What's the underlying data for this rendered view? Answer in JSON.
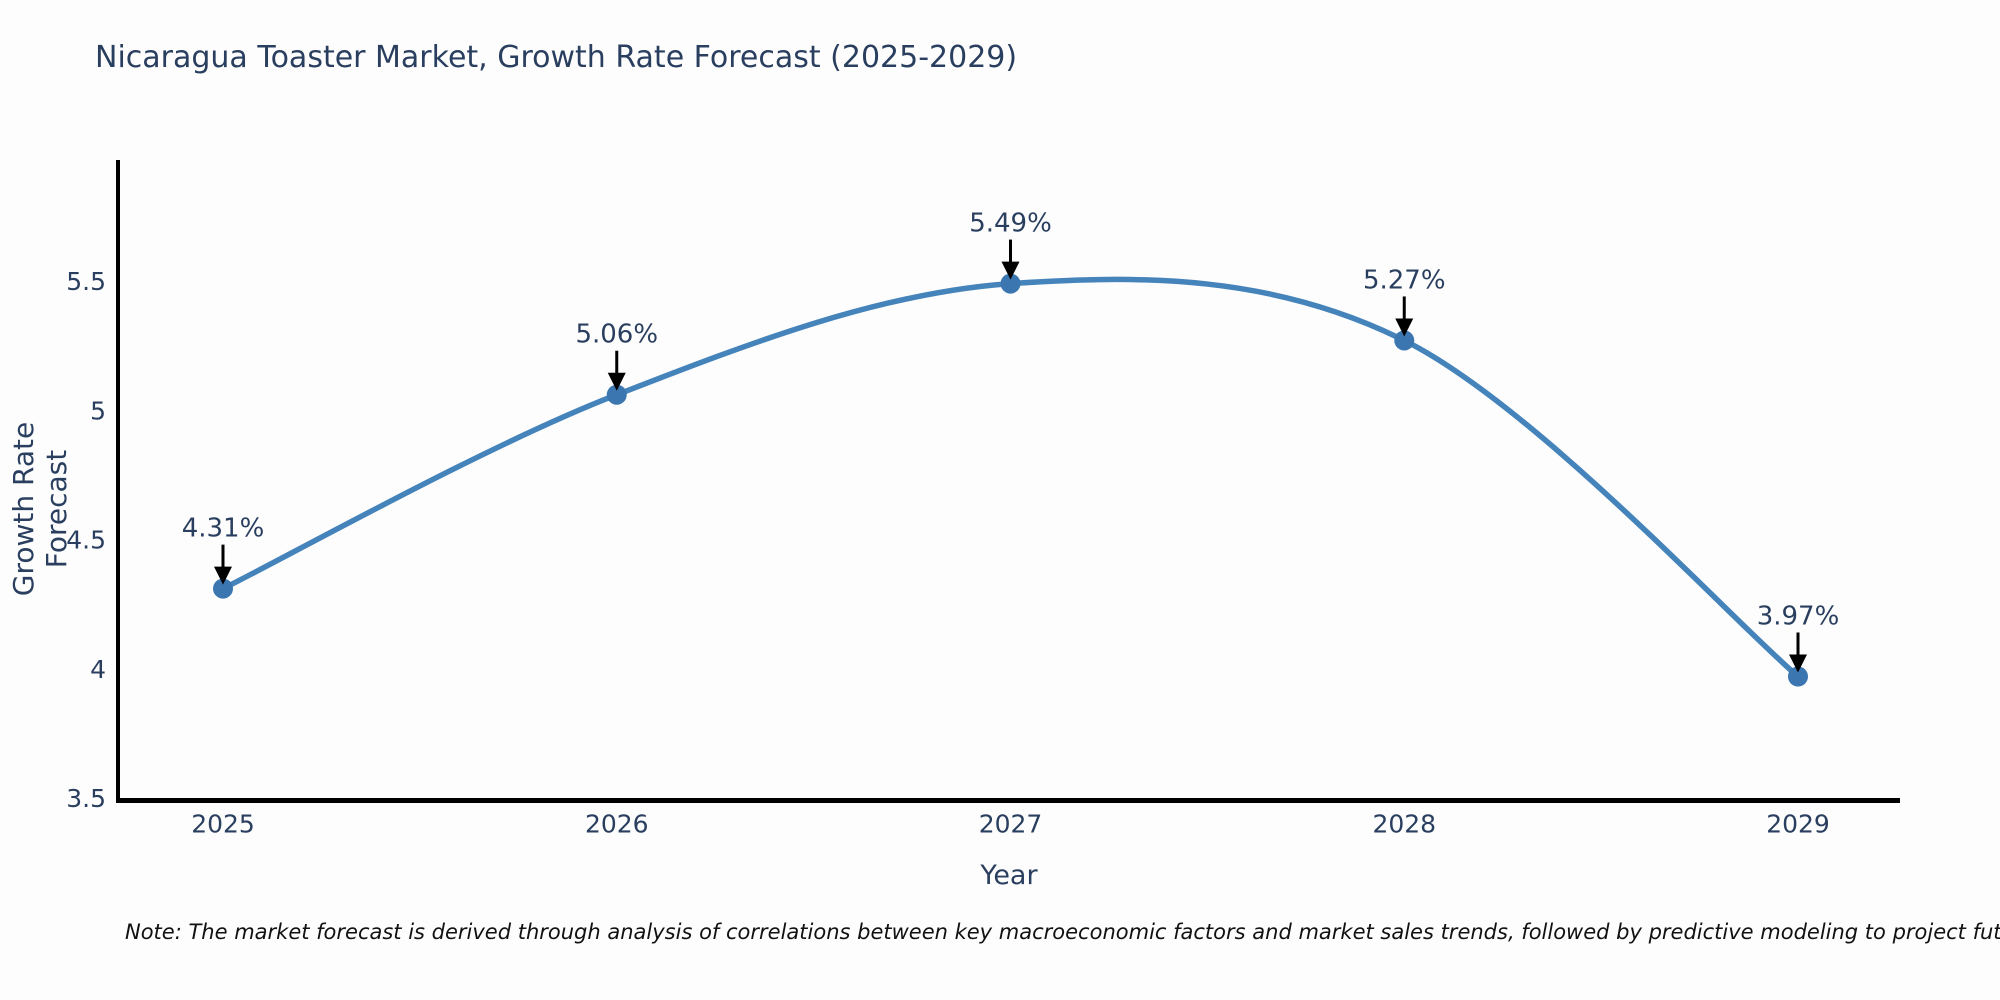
{
  "note": "Note: The market forecast is derived through analysis of correlations between key macroeconomic factors and market sales trends, followed by predictive modeling to project future sales",
  "chart_data": {
    "type": "line",
    "title": "Nicaragua Toaster Market, Growth Rate Forecast (2025-2029)",
    "x": [
      2025,
      2026,
      2027,
      2028,
      2029
    ],
    "y": [
      4.31,
      5.06,
      5.49,
      5.27,
      3.97
    ],
    "point_labels": [
      "4.31%",
      "5.06%",
      "5.49%",
      "5.27%",
      "3.97%"
    ],
    "xlabel": "Year",
    "ylabel": "Growth Rate Forecast",
    "yticks": [
      3.5,
      4,
      4.5,
      5,
      5.5
    ],
    "ylim": [
      3.5,
      5.97
    ],
    "line_shape": "spline",
    "grid": false,
    "legend": "none",
    "colors": {
      "line": "#4583bb",
      "marker": "#3b76b0",
      "axis_line": "#000000",
      "tick_label": "#2a3f5f",
      "annotation_text": "#2a3f5f",
      "annotation_arrow": "#000000",
      "title_text": "#2a3f5f"
    }
  }
}
